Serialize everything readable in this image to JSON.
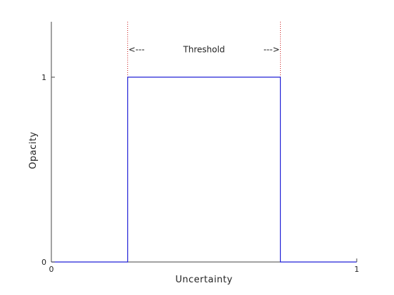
{
  "chart_data": {
    "type": "line",
    "xlabel": "Uncertainty",
    "ylabel": "Opacity",
    "xlim": [
      0,
      1
    ],
    "ylim": [
      0,
      1.3
    ],
    "xticks": [
      0,
      1
    ],
    "yticks": [
      0,
      1
    ],
    "grid": false,
    "series": [
      {
        "x": [
          0,
          0.25,
          0.25,
          0.75,
          0.75,
          1
        ],
        "y": [
          0,
          0,
          1,
          1,
          0,
          0
        ],
        "color": "#1f1fd6"
      }
    ],
    "threshold_lines": {
      "x": [
        0.25,
        0.75
      ],
      "color": "#cc2222"
    },
    "annotation": {
      "label": "Threshold",
      "left_arrow": "<---",
      "right_arrow": "--->",
      "y": 1.15
    },
    "colors": {
      "axis": "#444444",
      "line": "#1f1fd6",
      "threshold": "#cc2222"
    }
  }
}
